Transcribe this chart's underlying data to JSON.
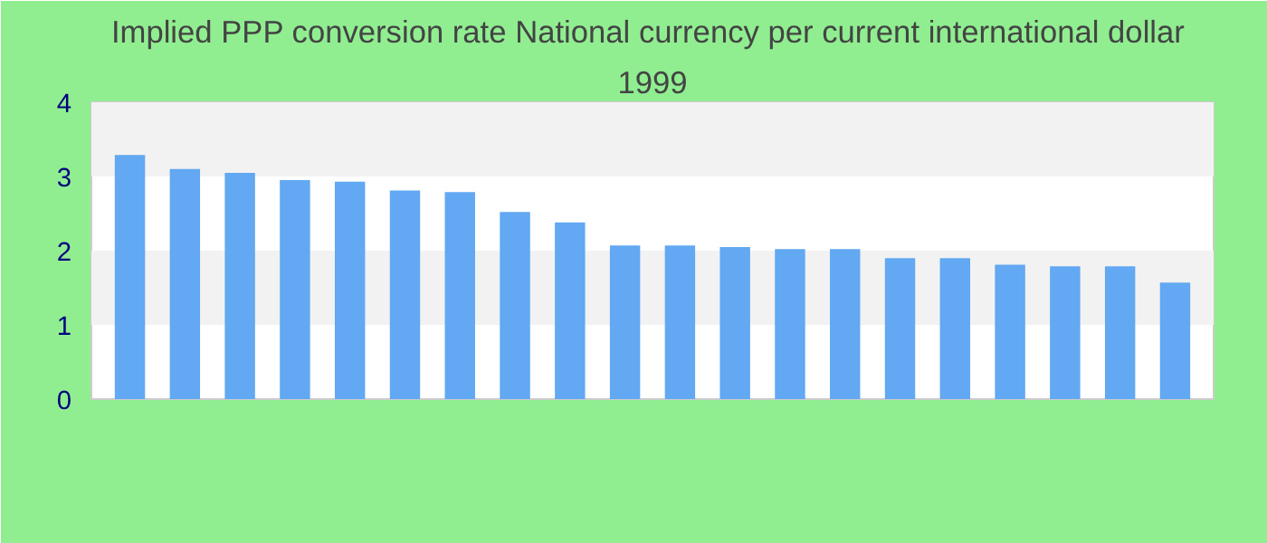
{
  "chart_data": {
    "type": "bar",
    "title": "Implied PPP conversion rate  National currency per current international dollar",
    "subtitle": "1999",
    "categories": [
      null,
      null,
      null,
      null,
      null,
      null,
      null,
      null,
      null,
      null,
      null,
      null,
      null,
      null,
      null,
      null,
      null,
      null,
      null,
      null
    ],
    "values": [
      3.29,
      3.1,
      3.05,
      2.95,
      2.93,
      2.81,
      2.79,
      2.52,
      2.38,
      2.07,
      2.07,
      2.05,
      2.02,
      2.02,
      1.9,
      1.9,
      1.81,
      1.79,
      1.79,
      1.57
    ],
    "color": "#62a8f2",
    "ylim": [
      0,
      4
    ],
    "yticks": [
      0,
      1,
      2,
      3,
      4
    ],
    "bands": [
      {
        "axis": "y",
        "from": 1,
        "to": 2,
        "color": "#f2f2f2"
      },
      {
        "axis": "y",
        "from": 3,
        "to": 4,
        "color": "#f2f2f2"
      }
    ]
  }
}
